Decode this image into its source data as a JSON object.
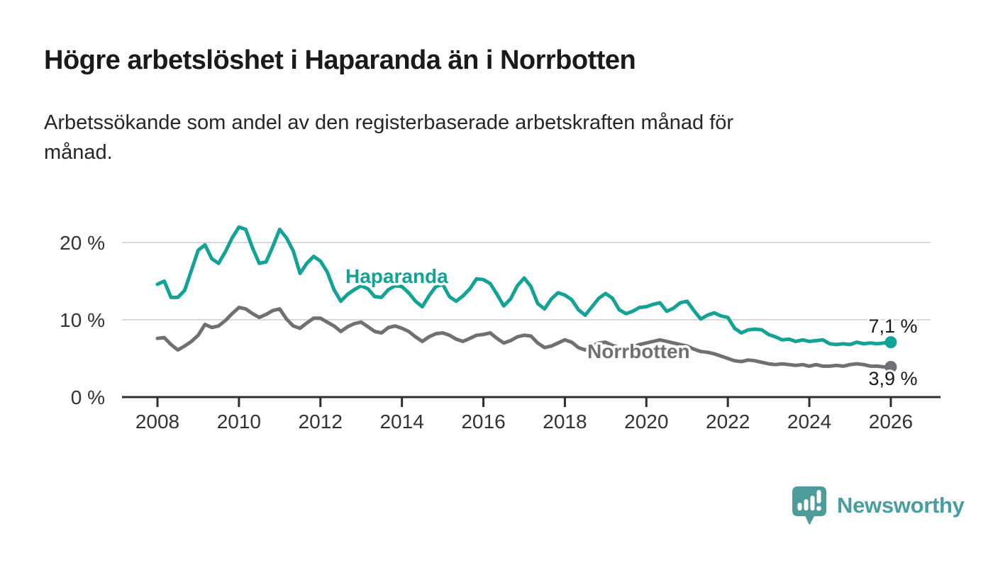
{
  "header": {
    "title": "Högre arbetslöshet i Haparanda än i Norrbotten",
    "subtitle": "Arbetssökande som andel av den registerbaserade arbetskraften månad för månad.",
    "subtitle_lines": [
      "Arbetssökande som andel av den registerbaserade arbetskraften månad för",
      "månad."
    ]
  },
  "chart_data": {
    "type": "line",
    "title": "Högre arbetslöshet i Haparanda än i Norrbotten",
    "subtitle": "Arbetssökande som andel av den registerbaserade arbetskraften månad för månad.",
    "unit": "%",
    "x_start_year": 2008,
    "x_step_months": 2,
    "xlim": [
      2008,
      2026.2
    ],
    "ylim": [
      0,
      24
    ],
    "grid": "horizontal",
    "legend_position": "inline-labels",
    "x_tick_labels": [
      "2008",
      "2010",
      "2012",
      "2014",
      "2016",
      "2018",
      "2020",
      "2022",
      "2024",
      "2026"
    ],
    "y_ticks": [
      {
        "value": 0,
        "label": "0 %"
      },
      {
        "value": 10,
        "label": "10 %"
      },
      {
        "value": 20,
        "label": "20 %"
      }
    ],
    "colors": {
      "axis": "#2d2d2d",
      "tick_text": "#333333",
      "gridline": "#d9d9d9",
      "end_label_text": "#1a1a1a"
    },
    "series": [
      {
        "name": "Haparanda",
        "color": "#12A296",
        "end_label": "7,1 %",
        "last_value": 7.1,
        "label_pos": {
          "x": 487,
          "y": 399
        },
        "end_label_pos": {
          "x": 1259,
          "y": 469
        },
        "values": [
          14.6,
          15.0,
          12.9,
          12.9,
          13.8,
          16.4,
          19.0,
          19.7,
          17.9,
          17.3,
          18.8,
          20.6,
          22.0,
          21.7,
          19.3,
          17.3,
          17.5,
          19.5,
          21.7,
          20.6,
          18.9,
          16.0,
          17.3,
          18.2,
          17.6,
          16.2,
          13.9,
          12.4,
          13.3,
          13.9,
          14.4,
          14.0,
          13.0,
          12.9,
          13.9,
          14.4,
          14.3,
          13.5,
          12.4,
          11.7,
          13.1,
          14.3,
          14.6,
          13.0,
          12.4,
          13.1,
          14.0,
          15.3,
          15.2,
          14.7,
          13.3,
          11.8,
          12.7,
          14.4,
          15.4,
          14.3,
          12.1,
          11.4,
          12.7,
          13.5,
          13.2,
          12.6,
          11.3,
          10.6,
          11.7,
          12.8,
          13.4,
          12.8,
          11.3,
          10.8,
          11.1,
          11.6,
          11.7,
          12.0,
          12.2,
          11.1,
          11.5,
          12.2,
          12.4,
          11.2,
          10.1,
          10.6,
          10.9,
          10.5,
          10.3,
          8.9,
          8.3,
          8.7,
          8.8,
          8.7,
          8.1,
          7.8,
          7.4,
          7.5,
          7.2,
          7.4,
          7.2,
          7.3,
          7.4,
          6.9,
          6.8,
          6.9,
          6.8,
          7.1,
          6.9,
          7.0,
          6.9,
          7.0,
          7.1
        ]
      },
      {
        "name": "Norrbotten",
        "color": "#716F74",
        "end_label": "3,9 %",
        "last_value": 3.9,
        "label_pos": {
          "x": 828,
          "y": 505
        },
        "end_label_pos": {
          "x": 1259,
          "y": 543
        },
        "values": [
          7.6,
          7.7,
          6.8,
          6.1,
          6.6,
          7.2,
          8.0,
          9.4,
          9.0,
          9.2,
          9.9,
          10.8,
          11.6,
          11.4,
          10.8,
          10.3,
          10.7,
          11.2,
          11.4,
          10.1,
          9.2,
          8.9,
          9.6,
          10.2,
          10.2,
          9.7,
          9.2,
          8.5,
          9.1,
          9.5,
          9.7,
          9.1,
          8.5,
          8.3,
          9.0,
          9.2,
          8.9,
          8.5,
          7.8,
          7.2,
          7.8,
          8.2,
          8.3,
          8.0,
          7.5,
          7.2,
          7.6,
          8.0,
          8.1,
          8.3,
          7.6,
          7.0,
          7.3,
          7.8,
          8.0,
          7.9,
          7.0,
          6.4,
          6.6,
          7.0,
          7.4,
          7.1,
          6.4,
          6.1,
          6.6,
          7.0,
          7.1,
          6.7,
          6.4,
          6.2,
          6.5,
          6.8,
          7.0,
          7.2,
          7.4,
          7.2,
          7.0,
          6.8,
          6.6,
          6.2,
          5.9,
          5.8,
          5.6,
          5.3,
          5.0,
          4.7,
          4.6,
          4.8,
          4.7,
          4.5,
          4.3,
          4.2,
          4.3,
          4.2,
          4.1,
          4.2,
          4.0,
          4.2,
          4.0,
          4.0,
          4.1,
          4.0,
          4.2,
          4.3,
          4.2,
          4.0,
          4.0,
          3.9,
          3.9
        ]
      }
    ]
  },
  "footer": {
    "brand": "Newsworthy",
    "brand_color": "#479EA0",
    "logo_icon": "newsworthy-bubble-chart-icon",
    "logo_icon_color": "#4E9C9A"
  }
}
